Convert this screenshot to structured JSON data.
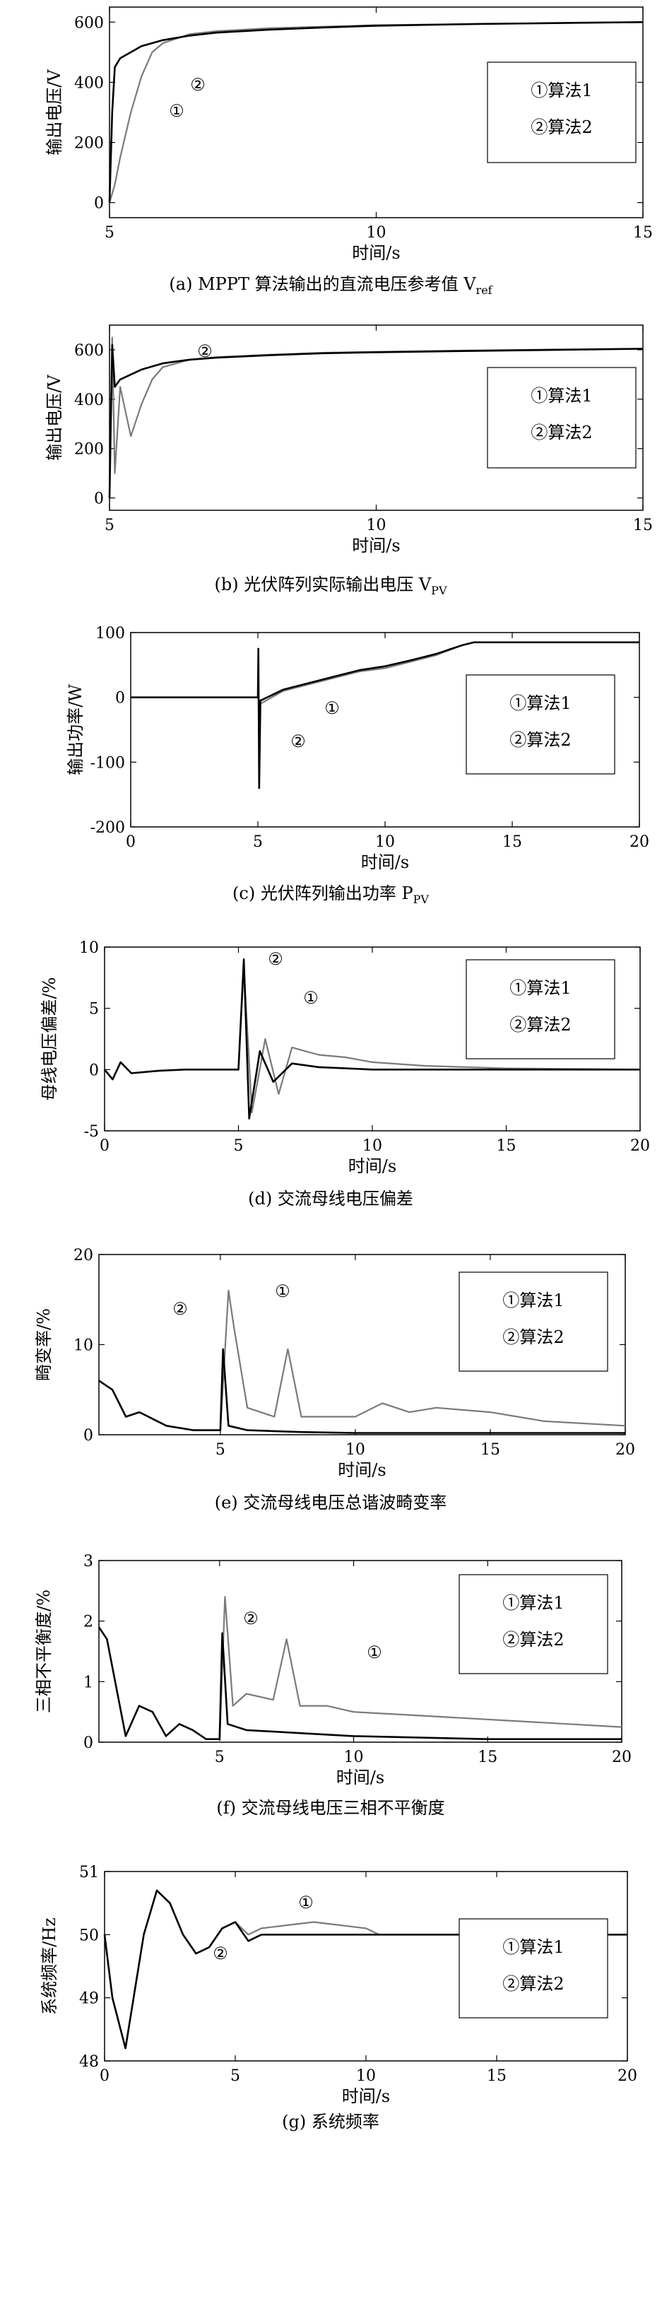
{
  "figure_captions": [
    "(a) MPPT 算法输出的直流电压参考值 V",
    "(b) 光伏阵列实际输出电压 V",
    "(c) 光伏阵列输出功率 P",
    "(d) 交流母线电压偏差",
    "(e) 交流母线电压总谐波畸变率",
    "(f) 交流母线电压三相不平衡度",
    "(g) 系统频率"
  ],
  "caption_subscripts": [
    "ref",
    "PV",
    "PV",
    "",
    "",
    "",
    ""
  ],
  "colors": {
    "algo1": "#7a7a7a",
    "algo2": "#000000"
  },
  "chart_data": [
    {
      "type": "line",
      "title": "",
      "xlabel": "时间/s",
      "ylabel": "输出电压/V",
      "xlim": [
        5,
        15
      ],
      "ylim": [
        -50,
        650
      ],
      "xticks": [
        5,
        10,
        15
      ],
      "yticks": [
        0,
        200,
        400,
        600
      ],
      "legend": [
        "①算法1",
        "②算法2"
      ],
      "legend_placement": "right",
      "annotations": [
        "②",
        "①"
      ],
      "series": [
        {
          "name": "①算法1",
          "x": [
            5.0,
            5.1,
            5.2,
            5.4,
            5.6,
            5.8,
            6.0,
            6.5,
            7,
            8,
            9,
            10,
            11,
            12,
            13,
            14,
            15
          ],
          "y": [
            0,
            60,
            150,
            300,
            420,
            500,
            530,
            560,
            570,
            580,
            585,
            590,
            592,
            594,
            596,
            598,
            600
          ]
        },
        {
          "name": "②算法2",
          "x": [
            5.0,
            5.05,
            5.1,
            5.2,
            5.4,
            5.6,
            6.0,
            6.5,
            7,
            8,
            9,
            10,
            11,
            12,
            13,
            14,
            15
          ],
          "y": [
            0,
            300,
            450,
            480,
            500,
            520,
            540,
            555,
            565,
            575,
            582,
            588,
            591,
            594,
            596,
            598,
            600
          ]
        }
      ]
    },
    {
      "type": "line",
      "title": "",
      "xlabel": "时间/s",
      "ylabel": "输出电压/V",
      "xlim": [
        5,
        15
      ],
      "ylim": [
        -50,
        700
      ],
      "xticks": [
        5,
        10,
        15
      ],
      "yticks": [
        0,
        200,
        400,
        600
      ],
      "legend": [
        "①算法1",
        "②算法2"
      ],
      "legend_placement": "right",
      "annotations": [
        "②"
      ],
      "series": [
        {
          "name": "①算法1",
          "x": [
            5.0,
            5.05,
            5.1,
            5.2,
            5.4,
            5.6,
            5.8,
            6.0,
            6.5,
            7,
            8,
            9,
            10,
            12,
            15
          ],
          "y": [
            0,
            650,
            100,
            450,
            250,
            380,
            480,
            530,
            560,
            570,
            580,
            588,
            592,
            598,
            605
          ]
        },
        {
          "name": "②算法2",
          "x": [
            5.0,
            5.05,
            5.1,
            5.2,
            5.4,
            5.6,
            6.0,
            6.5,
            7,
            8,
            9,
            10,
            12,
            15
          ],
          "y": [
            0,
            620,
            450,
            480,
            500,
            520,
            545,
            560,
            568,
            578,
            586,
            590,
            596,
            604
          ]
        }
      ]
    },
    {
      "type": "line",
      "title": "",
      "xlabel": "时间/s",
      "ylabel": "输出功率/W",
      "xlim": [
        0,
        20
      ],
      "ylim": [
        -200,
        100
      ],
      "xticks": [
        0,
        5,
        10,
        15,
        20
      ],
      "yticks": [
        -200,
        -100,
        0,
        100
      ],
      "legend": [
        "①算法1",
        "②算法2"
      ],
      "legend_placement": "right",
      "annotations": [
        "①",
        "②"
      ],
      "series": [
        {
          "name": "①算法1",
          "x": [
            0,
            5,
            5.1,
            6,
            7,
            8,
            9,
            10,
            11,
            12,
            13,
            13.5,
            15,
            20
          ],
          "y": [
            0,
            0,
            -10,
            10,
            20,
            30,
            40,
            45,
            55,
            65,
            80,
            85,
            85,
            85
          ]
        },
        {
          "name": "②算法2",
          "x": [
            0,
            5,
            5.02,
            5.05,
            5.1,
            6,
            7,
            8,
            9,
            10,
            11,
            12,
            13,
            13.5,
            15,
            20
          ],
          "y": [
            0,
            0,
            75,
            -140,
            -5,
            12,
            22,
            32,
            42,
            48,
            57,
            67,
            80,
            85,
            85,
            85
          ]
        }
      ]
    },
    {
      "type": "line",
      "title": "",
      "xlabel": "时间/s",
      "ylabel": "母线电压偏差/%",
      "xlim": [
        0,
        20
      ],
      "ylim": [
        -5,
        10
      ],
      "xticks": [
        0,
        5,
        10,
        15,
        20
      ],
      "yticks": [
        -5,
        0,
        5,
        10
      ],
      "legend": [
        "①算法1",
        "②算法2"
      ],
      "legend_placement": "right",
      "annotations": [
        "②",
        "①"
      ],
      "series": [
        {
          "name": "①算法1",
          "x": [
            0,
            0.3,
            0.6,
            1,
            2,
            3,
            4,
            5,
            5.2,
            5.5,
            6,
            6.5,
            7,
            8,
            9,
            10,
            12,
            15,
            20
          ],
          "y": [
            0,
            -0.8,
            0.6,
            -0.3,
            -0.1,
            0,
            0,
            0,
            8.5,
            -3.5,
            2.5,
            -2,
            1.8,
            1.2,
            1,
            0.6,
            0.3,
            0.1,
            0
          ]
        },
        {
          "name": "②算法2",
          "x": [
            0,
            0.3,
            0.6,
            1,
            2,
            3,
            4,
            5,
            5.2,
            5.4,
            5.8,
            6.3,
            7,
            8,
            9,
            10,
            12,
            15,
            20
          ],
          "y": [
            0,
            -0.8,
            0.6,
            -0.3,
            -0.1,
            0,
            0,
            0,
            9,
            -4,
            1.5,
            -1,
            0.5,
            0.2,
            0.1,
            0,
            0,
            0,
            0
          ]
        }
      ]
    },
    {
      "type": "line",
      "title": "",
      "xlabel": "时间/s",
      "ylabel": "畸变率/%",
      "xlim": [
        0.5,
        20
      ],
      "ylim": [
        0,
        20
      ],
      "xticks": [
        5,
        10,
        15,
        20
      ],
      "yticks": [
        0,
        10,
        20
      ],
      "legend": [
        "①算法1",
        "②算法2"
      ],
      "legend_placement": "right",
      "annotations": [
        "②",
        "①"
      ],
      "series": [
        {
          "name": "①算法1",
          "x": [
            0.5,
            1,
            1.5,
            2,
            3,
            4,
            5,
            5.3,
            5.5,
            6,
            7,
            7.5,
            8,
            10,
            11,
            12,
            13,
            15,
            17,
            20
          ],
          "y": [
            6,
            5,
            2,
            2.5,
            1,
            0.5,
            0.5,
            16,
            12,
            3,
            2,
            9.5,
            2,
            2,
            3.5,
            2.5,
            3,
            2.5,
            1.5,
            1
          ]
        },
        {
          "name": "②算法2",
          "x": [
            0.5,
            1,
            1.5,
            2,
            3,
            4,
            5,
            5.1,
            5.3,
            6,
            8,
            10,
            15,
            20
          ],
          "y": [
            6,
            5,
            2,
            2.5,
            1,
            0.5,
            0.5,
            9.5,
            1,
            0.5,
            0.3,
            0.2,
            0.2,
            0.2
          ]
        }
      ]
    },
    {
      "type": "line",
      "title": "",
      "xlabel": "时间/s",
      "ylabel": "三相不平衡度/%",
      "xlim": [
        0.5,
        20
      ],
      "ylim": [
        0,
        3
      ],
      "xticks": [
        5,
        10,
        15,
        20
      ],
      "yticks": [
        0,
        1,
        2,
        3
      ],
      "legend": [
        "①算法1",
        "②算法2"
      ],
      "legend_placement": "right",
      "annotations": [
        "②",
        "①"
      ],
      "series": [
        {
          "name": "①算法1",
          "x": [
            5,
            5.2,
            5.5,
            6,
            7,
            7.5,
            8,
            9,
            10,
            12,
            14,
            16,
            18,
            20
          ],
          "y": [
            0,
            2.4,
            0.6,
            0.8,
            0.7,
            1.7,
            0.6,
            0.6,
            0.5,
            0.45,
            0.4,
            0.35,
            0.3,
            0.25
          ]
        },
        {
          "name": "②算法2",
          "x": [
            0.5,
            0.8,
            1.5,
            2,
            2.5,
            3,
            3.5,
            4,
            4.5,
            5,
            5.1,
            5.3,
            6,
            8,
            10,
            15,
            20
          ],
          "y": [
            1.9,
            1.7,
            0.1,
            0.6,
            0.5,
            0.1,
            0.3,
            0.2,
            0.05,
            0.05,
            1.8,
            0.3,
            0.2,
            0.15,
            0.1,
            0.05,
            0.05
          ]
        }
      ]
    },
    {
      "type": "line",
      "title": "",
      "xlabel": "时间/s",
      "ylabel": "系统频率/Hz",
      "xlim": [
        0,
        20
      ],
      "ylim": [
        48,
        51
      ],
      "xticks": [
        0,
        5,
        10,
        15,
        20
      ],
      "yticks": [
        48,
        49,
        50,
        51
      ],
      "legend": [
        "①算法1",
        "②算法2"
      ],
      "legend_placement": "right",
      "annotations": [
        "①",
        "②"
      ],
      "series": [
        {
          "name": "①算法1",
          "x": [
            0,
            0.3,
            0.8,
            1.5,
            2,
            2.5,
            3,
            3.5,
            4,
            4.5,
            5,
            5.5,
            6,
            7,
            8,
            9,
            10,
            10.5,
            12,
            15,
            20
          ],
          "y": [
            50.0,
            49.0,
            48.2,
            50.0,
            50.7,
            50.5,
            50.0,
            49.7,
            49.8,
            50.1,
            50.2,
            50.0,
            50.1,
            50.15,
            50.2,
            50.15,
            50.1,
            50.0,
            50.0,
            50.0,
            50.0
          ]
        },
        {
          "name": "②算法2",
          "x": [
            0,
            0.3,
            0.8,
            1.5,
            2,
            2.5,
            3,
            3.5,
            4,
            4.5,
            5,
            5.5,
            6,
            7,
            8,
            10,
            15,
            20
          ],
          "y": [
            50.0,
            49.0,
            48.2,
            50.0,
            50.7,
            50.5,
            50.0,
            49.7,
            49.8,
            50.1,
            50.2,
            49.9,
            50.0,
            50.0,
            50.0,
            50.0,
            50.0,
            50.0
          ]
        }
      ]
    }
  ]
}
